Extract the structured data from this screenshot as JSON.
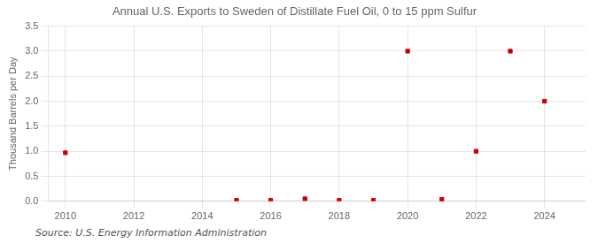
{
  "chart_data": {
    "type": "scatter",
    "title": "Annual U.S. Exports to Sweden of Distillate Fuel Oil, 0 to 15 ppm Sulfur",
    "ylabel": "Thousand Barrels per Day",
    "annotation": "Source: U.S. Energy Information Administration",
    "x": [
      2010,
      2015,
      2016,
      2017,
      2018,
      2019,
      2020,
      2021,
      2022,
      2023,
      2024
    ],
    "values": [
      0.97,
      0.02,
      0.02,
      0.05,
      0.02,
      0.02,
      3.0,
      0.04,
      1.0,
      3.0,
      2.0
    ],
    "color": "#cc0000",
    "marker": "square",
    "xlim": [
      2009.5,
      2025.2
    ],
    "ylim": [
      0.0,
      3.5
    ],
    "xticks": [
      2010,
      2012,
      2014,
      2016,
      2018,
      2020,
      2022,
      2024
    ],
    "yticks": [
      {
        "value": 0.0,
        "label": "0.0"
      },
      0.5,
      {
        "value": 1.0,
        "label": "1.0"
      },
      1.5,
      {
        "value": 2.0,
        "label": "2.0"
      },
      2.5,
      {
        "value": 3.0,
        "label": "3.0"
      },
      3.5
    ],
    "grid": true
  }
}
